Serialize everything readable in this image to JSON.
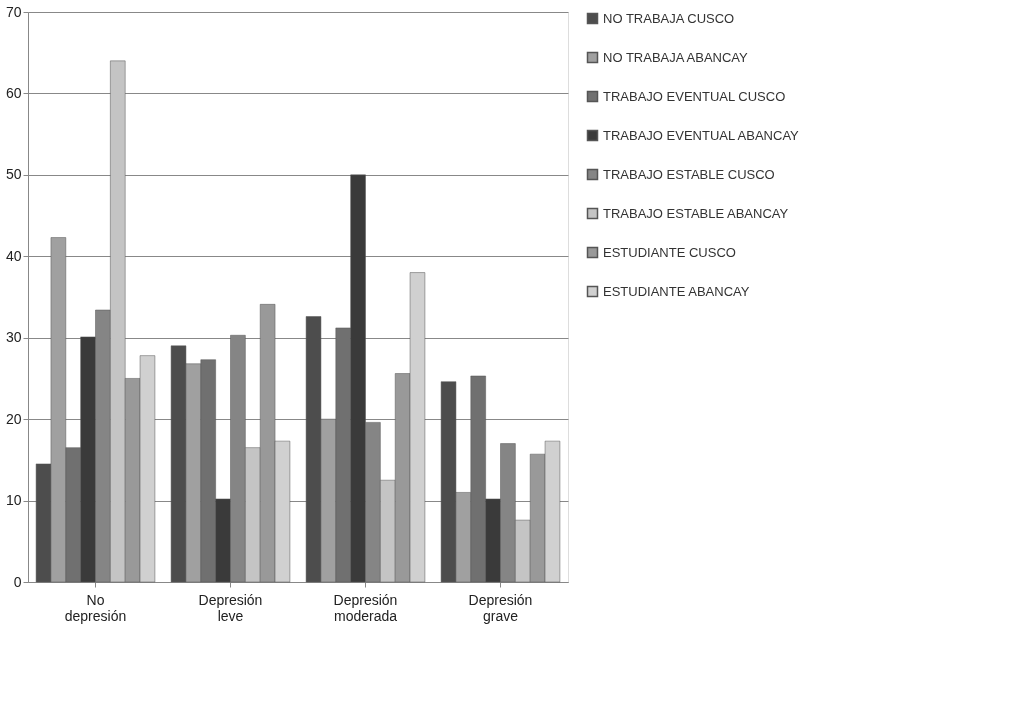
{
  "chart_data": {
    "type": "bar",
    "categories": [
      "No depresión",
      "Depresión leve",
      "Depresión moderada",
      "Depresión grave"
    ],
    "series": [
      {
        "name": "NO TRABAJA CUSCO",
        "color": "#4d4d4d",
        "values": [
          14.5,
          29,
          32.6,
          24.6
        ]
      },
      {
        "name": "NO TRABAJA ABANCAY",
        "color": "#a0a0a0",
        "values": [
          42.3,
          26.8,
          20,
          11
        ]
      },
      {
        "name": "TRABAJO EVENTUAL CUSCO",
        "color": "#707070",
        "values": [
          16.5,
          27.3,
          31.2,
          25.3
        ]
      },
      {
        "name": "TRABAJO EVENTUAL ABANCAY",
        "color": "#3a3a3a",
        "values": [
          30.1,
          10.2,
          50,
          10.2
        ]
      },
      {
        "name": "TRABAJO ESTABLE CUSCO",
        "color": "#858585",
        "values": [
          33.4,
          30.3,
          19.6,
          17
        ]
      },
      {
        "name": "TRABAJO ESTABLE ABANCAY",
        "color": "#c4c4c4",
        "values": [
          64,
          16.5,
          12.5,
          7.6
        ]
      },
      {
        "name": "ESTUDIANTE CUSCO",
        "color": "#999999",
        "values": [
          25,
          34.1,
          25.6,
          15.7
        ]
      },
      {
        "name": "ESTUDIANTE ABANCAY",
        "color": "#d0d0d0",
        "values": [
          27.8,
          17.3,
          38,
          17.3
        ]
      }
    ],
    "ylim": [
      0,
      70
    ],
    "yticks": [
      0,
      10,
      20,
      30,
      40,
      50,
      60,
      70
    ],
    "grid": "y",
    "legend": "right"
  }
}
